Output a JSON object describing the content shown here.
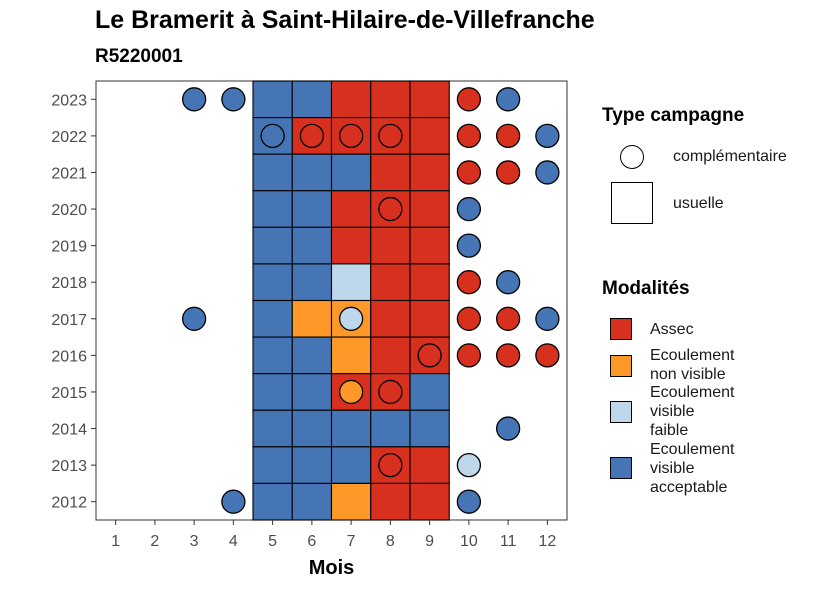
{
  "title": "Le Bramerit à Saint-Hilaire-de-Villefranche",
  "subtitle": "R5220001",
  "colors": {
    "Assec": "#D7301F",
    "Ecoulement non visible": "#FE9929",
    "Ecoulement visible faible": "#BFD7EA",
    "Ecoulement visible acceptable": "#4575B4"
  },
  "legend": {
    "type_title": "Type campagne",
    "type_items": [
      {
        "shape": "circle",
        "label": "complémentaire"
      },
      {
        "shape": "square",
        "label": "usuelle"
      }
    ],
    "modalite_title": "Modalités",
    "modalite_items": [
      {
        "key": "Assec",
        "lines": [
          "Assec"
        ]
      },
      {
        "key": "Ecoulement non visible",
        "lines": [
          "Ecoulement",
          "non visible"
        ]
      },
      {
        "key": "Ecoulement visible faible",
        "lines": [
          "Ecoulement",
          "visible",
          "faible"
        ]
      },
      {
        "key": "Ecoulement visible acceptable",
        "lines": [
          "Ecoulement",
          "visible",
          "acceptable"
        ]
      }
    ]
  },
  "chart_data": {
    "type": "heatmap",
    "title": "Le Bramerit à Saint-Hilaire-de-Villefranche",
    "subtitle": "R5220001",
    "xlabel": "Mois",
    "ylabel": "",
    "x_ticks": [
      1,
      2,
      3,
      4,
      5,
      6,
      7,
      8,
      9,
      10,
      11,
      12
    ],
    "y_ticks": [
      2012,
      2013,
      2014,
      2015,
      2016,
      2017,
      2018,
      2019,
      2020,
      2021,
      2022,
      2023
    ],
    "legend_position": "right",
    "grid": false,
    "usuelle": [
      {
        "year": 2023,
        "values": {
          "5": "Ecoulement visible acceptable",
          "6": "Ecoulement visible acceptable",
          "7": "Assec",
          "8": "Assec",
          "9": "Assec"
        }
      },
      {
        "year": 2022,
        "values": {
          "5": "Ecoulement visible acceptable",
          "6": "Assec",
          "7": "Assec",
          "8": "Assec",
          "9": "Assec"
        }
      },
      {
        "year": 2021,
        "values": {
          "5": "Ecoulement visible acceptable",
          "6": "Ecoulement visible acceptable",
          "7": "Ecoulement visible acceptable",
          "8": "Assec",
          "9": "Assec"
        }
      },
      {
        "year": 2020,
        "values": {
          "5": "Ecoulement visible acceptable",
          "6": "Ecoulement visible acceptable",
          "7": "Assec",
          "8": "Assec",
          "9": "Assec"
        }
      },
      {
        "year": 2019,
        "values": {
          "5": "Ecoulement visible acceptable",
          "6": "Ecoulement visible acceptable",
          "7": "Assec",
          "8": "Assec",
          "9": "Assec"
        }
      },
      {
        "year": 2018,
        "values": {
          "5": "Ecoulement visible acceptable",
          "6": "Ecoulement visible acceptable",
          "7": "Ecoulement visible faible",
          "8": "Assec",
          "9": "Assec"
        }
      },
      {
        "year": 2017,
        "values": {
          "5": "Ecoulement visible acceptable",
          "6": "Ecoulement non visible",
          "7": "Ecoulement non visible",
          "8": "Assec",
          "9": "Assec"
        }
      },
      {
        "year": 2016,
        "values": {
          "5": "Ecoulement visible acceptable",
          "6": "Ecoulement visible acceptable",
          "7": "Ecoulement non visible",
          "8": "Assec",
          "9": "Assec"
        }
      },
      {
        "year": 2015,
        "values": {
          "5": "Ecoulement visible acceptable",
          "6": "Ecoulement visible acceptable",
          "7": "Assec",
          "8": "Assec",
          "9": "Ecoulement visible acceptable"
        }
      },
      {
        "year": 2014,
        "values": {
          "5": "Ecoulement visible acceptable",
          "6": "Ecoulement visible acceptable",
          "7": "Ecoulement visible acceptable",
          "8": "Ecoulement visible acceptable",
          "9": "Ecoulement visible acceptable"
        }
      },
      {
        "year": 2013,
        "values": {
          "5": "Ecoulement visible acceptable",
          "6": "Ecoulement visible acceptable",
          "7": "Ecoulement visible acceptable",
          "8": "Assec",
          "9": "Assec"
        }
      },
      {
        "year": 2012,
        "values": {
          "5": "Ecoulement visible acceptable",
          "6": "Ecoulement visible acceptable",
          "7": "Ecoulement non visible",
          "8": "Assec",
          "9": "Assec"
        }
      }
    ],
    "complementaire": [
      {
        "year": 2023,
        "month": 3,
        "modalite": "Ecoulement visible acceptable"
      },
      {
        "year": 2023,
        "month": 4,
        "modalite": "Ecoulement visible acceptable"
      },
      {
        "year": 2023,
        "month": 10,
        "modalite": "Assec"
      },
      {
        "year": 2023,
        "month": 11,
        "modalite": "Ecoulement visible acceptable"
      },
      {
        "year": 2022,
        "month": 5,
        "modalite": "Ecoulement visible acceptable"
      },
      {
        "year": 2022,
        "month": 6,
        "modalite": "Assec"
      },
      {
        "year": 2022,
        "month": 7,
        "modalite": "Assec"
      },
      {
        "year": 2022,
        "month": 8,
        "modalite": "Assec"
      },
      {
        "year": 2022,
        "month": 10,
        "modalite": "Assec"
      },
      {
        "year": 2022,
        "month": 11,
        "modalite": "Assec"
      },
      {
        "year": 2022,
        "month": 12,
        "modalite": "Ecoulement visible acceptable"
      },
      {
        "year": 2021,
        "month": 10,
        "modalite": "Assec"
      },
      {
        "year": 2021,
        "month": 11,
        "modalite": "Assec"
      },
      {
        "year": 2021,
        "month": 12,
        "modalite": "Ecoulement visible acceptable"
      },
      {
        "year": 2020,
        "month": 8,
        "modalite": "Assec"
      },
      {
        "year": 2020,
        "month": 10,
        "modalite": "Ecoulement visible acceptable"
      },
      {
        "year": 2019,
        "month": 10,
        "modalite": "Ecoulement visible acceptable"
      },
      {
        "year": 2018,
        "month": 10,
        "modalite": "Assec"
      },
      {
        "year": 2018,
        "month": 11,
        "modalite": "Ecoulement visible acceptable"
      },
      {
        "year": 2017,
        "month": 3,
        "modalite": "Ecoulement visible acceptable"
      },
      {
        "year": 2017,
        "month": 7,
        "modalite": "Ecoulement visible faible"
      },
      {
        "year": 2017,
        "month": 10,
        "modalite": "Assec"
      },
      {
        "year": 2017,
        "month": 11,
        "modalite": "Assec"
      },
      {
        "year": 2017,
        "month": 12,
        "modalite": "Ecoulement visible acceptable"
      },
      {
        "year": 2016,
        "month": 9,
        "modalite": "Assec"
      },
      {
        "year": 2016,
        "month": 10,
        "modalite": "Assec"
      },
      {
        "year": 2016,
        "month": 11,
        "modalite": "Assec"
      },
      {
        "year": 2016,
        "month": 12,
        "modalite": "Assec"
      },
      {
        "year": 2015,
        "month": 7,
        "modalite": "Ecoulement non visible"
      },
      {
        "year": 2015,
        "month": 8,
        "modalite": "Assec"
      },
      {
        "year": 2014,
        "month": 11,
        "modalite": "Ecoulement visible acceptable"
      },
      {
        "year": 2013,
        "month": 8,
        "modalite": "Assec"
      },
      {
        "year": 2013,
        "month": 10,
        "modalite": "Ecoulement visible faible"
      },
      {
        "year": 2012,
        "month": 4,
        "modalite": "Ecoulement visible acceptable"
      },
      {
        "year": 2012,
        "month": 10,
        "modalite": "Ecoulement visible acceptable"
      }
    ]
  }
}
